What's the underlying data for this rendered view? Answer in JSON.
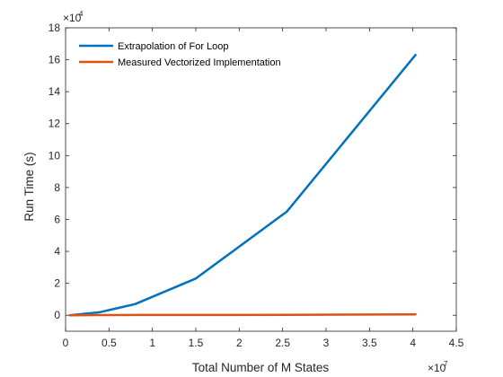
{
  "chart_data": {
    "type": "line",
    "title": "",
    "xlabel": "Total Number of M States",
    "ylabel": "Run Time (s)",
    "x_exponent": {
      "base": "×10",
      "power": "7"
    },
    "y_exponent": {
      "base": "×10",
      "power": "4"
    },
    "xlim": [
      0,
      4.5
    ],
    "ylim": [
      -1,
      18
    ],
    "xticks": [
      0,
      0.5,
      1,
      1.5,
      2,
      2.5,
      3,
      3.5,
      4,
      4.5
    ],
    "xtick_labels": [
      "0",
      "0.5",
      "1",
      "1.5",
      "2",
      "2.5",
      "3",
      "3.5",
      "4",
      "4.5"
    ],
    "yticks": [
      0,
      2,
      4,
      6,
      8,
      10,
      12,
      14,
      16,
      18
    ],
    "ytick_labels": [
      "0",
      "2",
      "4",
      "6",
      "8",
      "10",
      "12",
      "14",
      "16",
      "18"
    ],
    "grid": false,
    "legend_position": "top-left",
    "series": [
      {
        "name": "Extrapolation of For Loop",
        "color": "#0072BD",
        "x": [
          0.05,
          0.4,
          0.8,
          1.5,
          2.55,
          4.03
        ],
        "y": [
          0,
          0.2,
          0.7,
          2.3,
          6.5,
          16.3
        ]
      },
      {
        "name": "Measured Vectorized Implementation",
        "color": "#D95319",
        "x": [
          0.05,
          0.4,
          0.8,
          1.5,
          2.55,
          4.03
        ],
        "y": [
          0,
          0.01,
          0.015,
          0.02,
          0.03,
          0.05
        ]
      }
    ]
  }
}
